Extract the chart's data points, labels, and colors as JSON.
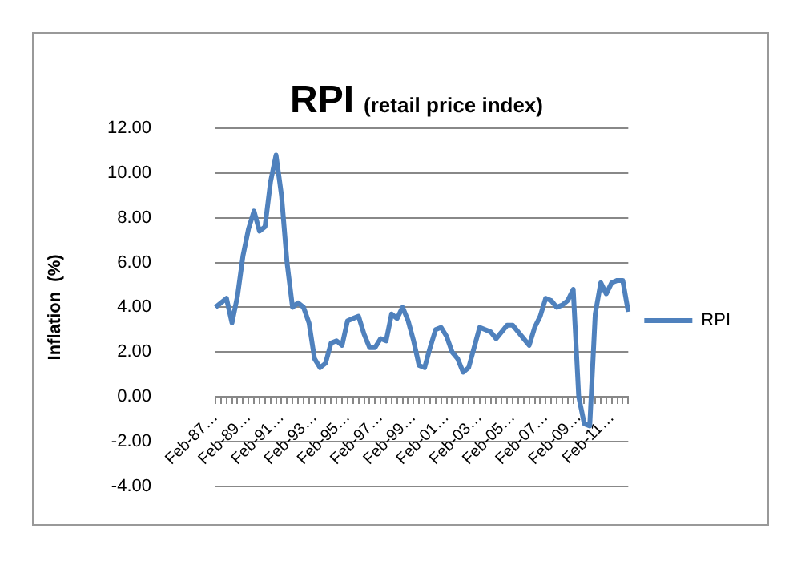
{
  "chart_data": {
    "type": "line",
    "title": "RPI",
    "subtitle": "(retail price index)",
    "ylabel": "Inflation  (%)",
    "categories": [
      "Feb-87…",
      null,
      null,
      null,
      null,
      null,
      "Feb-89…",
      null,
      null,
      null,
      null,
      null,
      "Feb-91…",
      null,
      null,
      null,
      null,
      null,
      "Feb-93…",
      null,
      null,
      null,
      null,
      null,
      "Feb-95…",
      null,
      null,
      null,
      null,
      null,
      "Feb-97…",
      null,
      null,
      null,
      null,
      null,
      "Feb-99…",
      null,
      null,
      null,
      null,
      null,
      "Feb-01…",
      null,
      null,
      null,
      null,
      null,
      "Feb-03…",
      null,
      null,
      null,
      null,
      null,
      "Feb-05…",
      null,
      null,
      null,
      null,
      null,
      "Feb-07…",
      null,
      null,
      null,
      null,
      null,
      "Feb-09…",
      null,
      null,
      null,
      null,
      null,
      "Feb-11…",
      null,
      null,
      null
    ],
    "series": [
      {
        "name": "RPI",
        "color": "#4f81bd",
        "values": [
          4.0,
          4.2,
          4.4,
          3.3,
          4.5,
          6.3,
          7.5,
          8.3,
          7.4,
          7.6,
          9.6,
          10.8,
          9.0,
          6.0,
          4.0,
          4.2,
          4.0,
          3.3,
          1.7,
          1.3,
          1.5,
          2.4,
          2.5,
          2.3,
          3.4,
          3.5,
          3.6,
          2.8,
          2.2,
          2.2,
          2.6,
          2.5,
          3.7,
          3.5,
          4.0,
          3.4,
          2.5,
          1.4,
          1.3,
          2.2,
          3.0,
          3.1,
          2.7,
          2.0,
          1.7,
          1.1,
          1.3,
          2.2,
          3.1,
          3.0,
          2.9,
          2.6,
          2.9,
          3.2,
          3.2,
          2.9,
          2.6,
          2.3,
          3.1,
          3.6,
          4.4,
          4.3,
          4.0,
          4.1,
          4.3,
          4.8,
          0.0,
          -1.2,
          -1.3,
          3.7,
          5.1,
          4.6,
          5.1,
          5.2,
          5.2,
          3.8
        ]
      }
    ],
    "ylim": [
      -4,
      12
    ],
    "yticks": [
      {
        "value": -4,
        "label": "-4.00"
      },
      {
        "value": -2,
        "label": "-2.00"
      },
      {
        "value": 0,
        "label": "0.00"
      },
      {
        "value": 2,
        "label": "2.00"
      },
      {
        "value": 4,
        "label": "4.00"
      },
      {
        "value": 6,
        "label": "6.00"
      },
      {
        "value": 8,
        "label": "8.00"
      },
      {
        "value": 10,
        "label": "10.00"
      },
      {
        "value": 12,
        "label": "12.00"
      }
    ],
    "grid": "y",
    "legend": "right",
    "line_style": "solid"
  }
}
